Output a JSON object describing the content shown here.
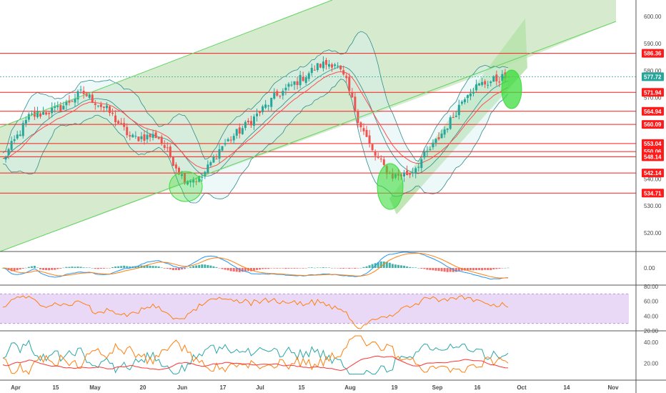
{
  "chart_data": {
    "type": "candlestick",
    "main": {
      "price_ticks": [
        520,
        530,
        540,
        550,
        560,
        570,
        580,
        590,
        600
      ],
      "price_ylim": [
        513,
        605
      ],
      "horizontal_levels": [
        586.36,
        571.94,
        564.94,
        560.09,
        553.04,
        550.06,
        548.14,
        542.14,
        534.71
      ],
      "current_price": 577.72,
      "level_color": "#ff1a1a",
      "current_color": "#26a69a"
    },
    "x_axis": {
      "labels": [
        "Apr",
        "15",
        "May",
        "20",
        "Jun",
        "17",
        "Jul",
        "15",
        "Aug",
        "19",
        "Sep",
        "16",
        "Oct",
        "14",
        "Nov"
      ]
    },
    "macd": {
      "ticks": [
        "0.00"
      ]
    },
    "rsi": {
      "ticks": [
        "80.00",
        "60.00",
        "40.00",
        "20.00"
      ],
      "band": [
        30,
        70
      ]
    },
    "dmi": {
      "ticks": [
        "40.00",
        "20.00"
      ]
    },
    "colors": {
      "up": "#26a69a",
      "down": "#ef5350",
      "channel_fill": "#cfe8c6",
      "channel_line": "#5fd35f",
      "bb_line": "#2e8b8b",
      "ema_line": "#ff4d4d",
      "circle": "#3ddc3d",
      "macd_line": "#2196f3",
      "signal_line": "#ff7f0e",
      "rsi_line": "#ff7f0e",
      "rsi_band": "#ead9f6",
      "plus_di": "#2aa6a6",
      "minus_di": "#ff7f0e",
      "adx": "#ff3333"
    }
  }
}
